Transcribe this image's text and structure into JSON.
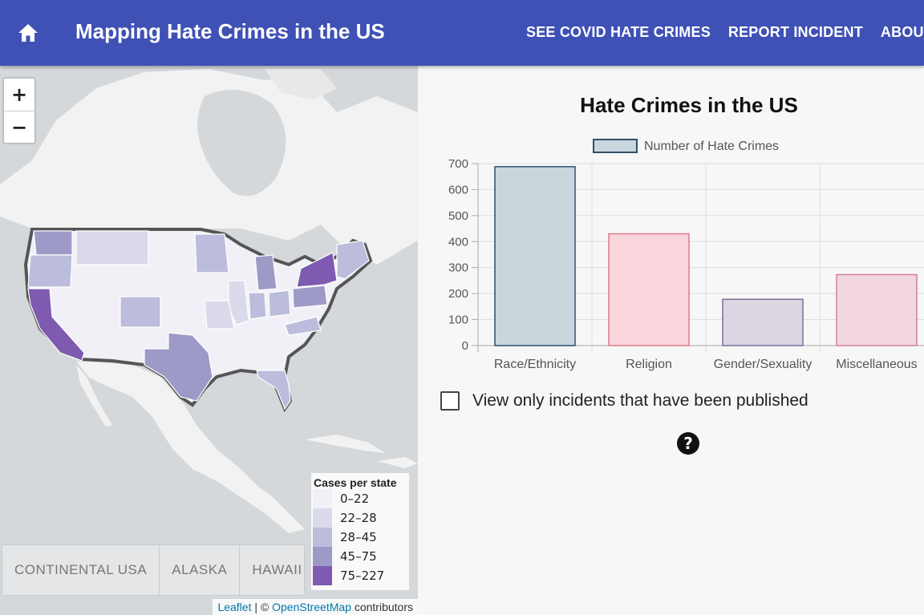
{
  "app": {
    "title": "Mapping Hate Crimes in the US",
    "brand_color": "#3f51b5",
    "home_icon": "home-icon",
    "nav": [
      {
        "label": "SEE COVID HATE CRIMES"
      },
      {
        "label": "REPORT INCIDENT"
      },
      {
        "label": "ABOUT"
      }
    ]
  },
  "map": {
    "zoom_in": "+",
    "zoom_out": "−",
    "legend": {
      "title": "Cases per state",
      "bins": [
        {
          "label": "0–22",
          "color": "#f2f0f7"
        },
        {
          "label": "22–28",
          "color": "#dadaeb"
        },
        {
          "label": "28–45",
          "color": "#bcbddc"
        },
        {
          "label": "45–75",
          "color": "#9e9ac8"
        },
        {
          "label": "75–227",
          "color": "#7e5ab0"
        }
      ]
    },
    "region_tabs": [
      {
        "label": "CONTINENTAL USA"
      },
      {
        "label": "ALASKA"
      },
      {
        "label": "HAWAII"
      }
    ],
    "attribution": {
      "leaflet": "Leaflet",
      "separator": " | © ",
      "osm": "OpenStreetMap",
      "suffix": " contributors"
    }
  },
  "chart_data": {
    "type": "bar",
    "title": "Hate Crimes in the US",
    "legend": "Number of Hate Crimes",
    "categories": [
      "Race/Ethnicity",
      "Religion",
      "Gender/Sexuality",
      "Miscellaneous"
    ],
    "values": [
      688,
      430,
      178,
      273
    ],
    "ylim": [
      0,
      700
    ],
    "yticks": [
      0,
      100,
      200,
      300,
      400,
      500,
      600,
      700
    ],
    "grid": true,
    "legend_position": "top",
    "bar_fills": [
      "#c9d6dc",
      "#f8d6dc",
      "#dcd6e3",
      "#f2d6e2"
    ],
    "bar_strokes": [
      "#2f4f6a",
      "#e0788a",
      "#7d6e9a",
      "#d27fa0"
    ]
  },
  "panel": {
    "publish_label": "View only incidents that have been published",
    "publish_checked": false,
    "help_icon": "?"
  }
}
